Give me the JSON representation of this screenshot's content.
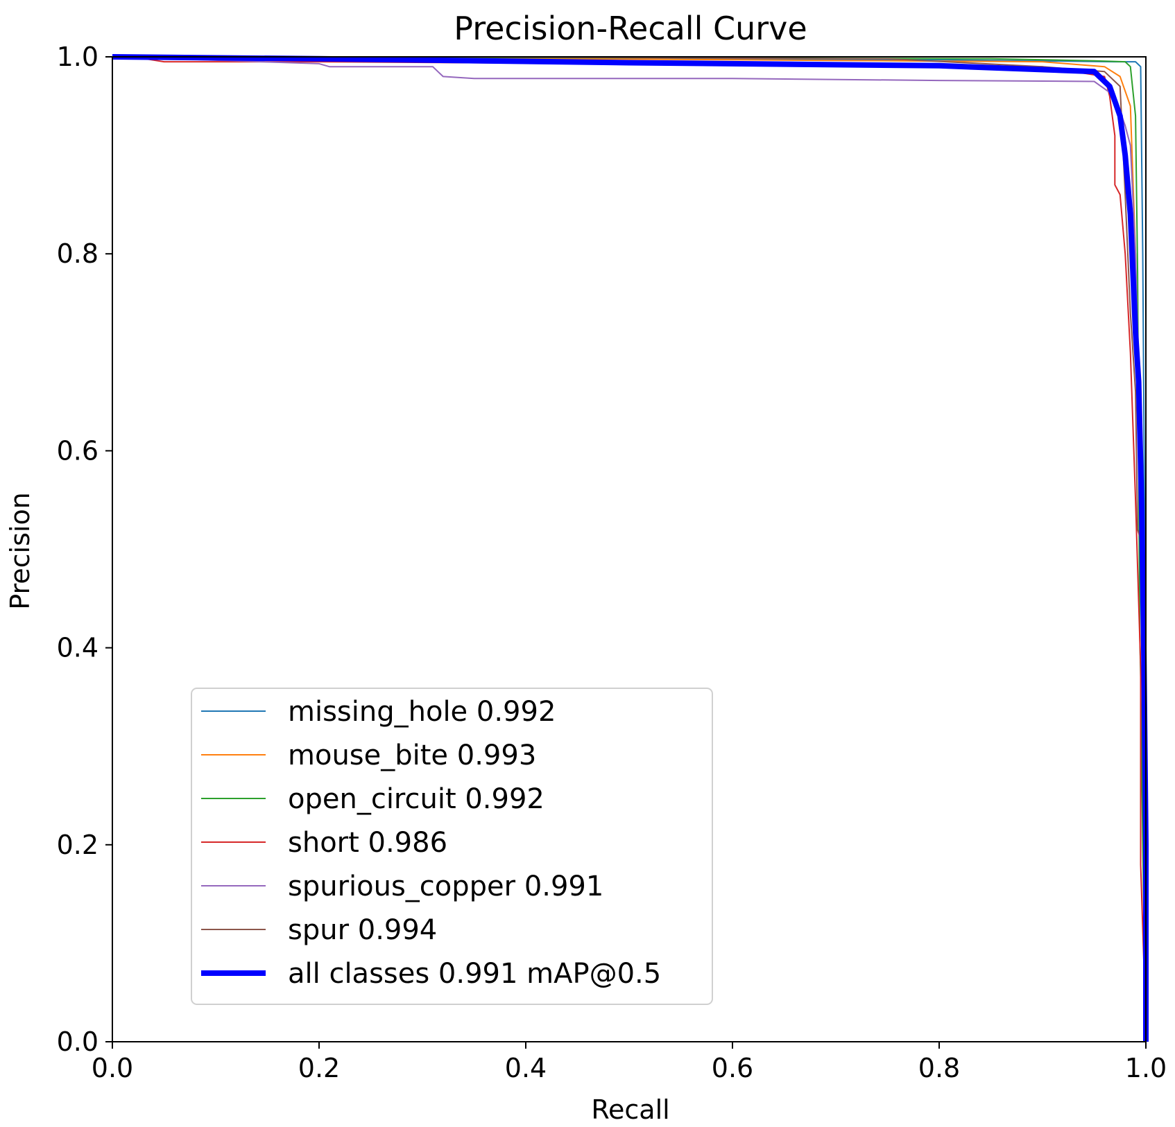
{
  "chart_data": {
    "type": "line",
    "title": "Precision-Recall Curve",
    "xlabel": "Recall",
    "ylabel": "Precision",
    "xlim": [
      0,
      1
    ],
    "ylim": [
      0,
      1
    ],
    "xticks": [
      "0.0",
      "0.2",
      "0.4",
      "0.6",
      "0.8",
      "1.0"
    ],
    "yticks": [
      "0.0",
      "0.2",
      "0.4",
      "0.6",
      "0.8",
      "1.0"
    ],
    "grid": false,
    "legend_position": "lower-left",
    "series": [
      {
        "name": "missing_hole",
        "score": "0.992",
        "label": "missing_hole 0.992",
        "color": "#1f77b4",
        "width": 2,
        "x": [
          0,
          0.2,
          0.5,
          0.8,
          0.97,
          0.99,
          0.995,
          0.997,
          0.999,
          1.0,
          1.0
        ],
        "y": [
          1.0,
          1.0,
          0.998,
          0.997,
          0.995,
          0.995,
          0.99,
          0.8,
          0.5,
          0.2,
          0.0
        ]
      },
      {
        "name": "mouse_bite",
        "score": "0.993",
        "label": "mouse_bite 0.993",
        "color": "#ff7f0e",
        "width": 2,
        "x": [
          0,
          0.3,
          0.6,
          0.9,
          0.96,
          0.975,
          0.985,
          0.99,
          0.995,
          0.999,
          1.0
        ],
        "y": [
          1.0,
          0.999,
          0.997,
          0.995,
          0.99,
          0.98,
          0.95,
          0.8,
          0.5,
          0.2,
          0.0
        ]
      },
      {
        "name": "open_circuit",
        "score": "0.992",
        "label": "open_circuit 0.992",
        "color": "#2ca02c",
        "width": 2,
        "x": [
          0,
          0.5,
          0.85,
          0.95,
          0.98,
          0.985,
          0.99,
          0.992,
          0.994,
          0.995,
          0.997,
          1.0
        ],
        "y": [
          1.0,
          0.999,
          0.998,
          0.996,
          0.995,
          0.99,
          0.94,
          0.78,
          0.42,
          0.37,
          0.2,
          0.0
        ]
      },
      {
        "name": "short",
        "score": "0.986",
        "label": "short 0.986",
        "color": "#d62728",
        "width": 2,
        "x": [
          0,
          0.02,
          0.05,
          0.2,
          0.5,
          0.9,
          0.96,
          0.965,
          0.97,
          0.97,
          0.975,
          0.98,
          0.985,
          0.99,
          0.995,
          0.995,
          0.999,
          1.0
        ],
        "y": [
          1.0,
          1.0,
          0.995,
          0.995,
          0.993,
          0.99,
          0.98,
          0.96,
          0.92,
          0.87,
          0.86,
          0.8,
          0.7,
          0.55,
          0.38,
          0.18,
          0.05,
          0.0
        ]
      },
      {
        "name": "spurious_copper",
        "score": "0.991",
        "label": "spurious_copper 0.991",
        "color": "#9467bd",
        "width": 2,
        "x": [
          0,
          0.2,
          0.21,
          0.31,
          0.32,
          0.35,
          0.6,
          0.8,
          0.95,
          0.97,
          0.98,
          0.985,
          0.99,
          0.995,
          0.999,
          1.0
        ],
        "y": [
          1.0,
          0.993,
          0.99,
          0.99,
          0.98,
          0.978,
          0.978,
          0.976,
          0.975,
          0.96,
          0.93,
          0.91,
          0.8,
          0.6,
          0.3,
          0.0
        ]
      },
      {
        "name": "spur",
        "score": "0.994",
        "label": "spur 0.994",
        "color": "#8c564b",
        "width": 2,
        "x": [
          0,
          0.3,
          0.75,
          0.9,
          0.96,
          0.975,
          0.98,
          0.985,
          0.99,
          0.992,
          0.995,
          0.997,
          1.0
        ],
        "y": [
          1.0,
          1.0,
          0.998,
          0.99,
          0.985,
          0.97,
          0.86,
          0.74,
          0.66,
          0.52,
          0.51,
          0.45,
          0.0
        ]
      },
      {
        "name": "all classes",
        "score": "0.991",
        "label": "all classes 0.991 mAP@0.5",
        "color": "#0000ff",
        "width": 8,
        "x": [
          0,
          0.2,
          0.5,
          0.8,
          0.95,
          0.965,
          0.975,
          0.98,
          0.985,
          0.99,
          0.993,
          0.996,
          0.998,
          1.0,
          1.0
        ],
        "y": [
          1.0,
          0.998,
          0.994,
          0.991,
          0.985,
          0.97,
          0.94,
          0.9,
          0.84,
          0.72,
          0.67,
          0.54,
          0.4,
          0.2,
          0.0
        ]
      }
    ]
  }
}
